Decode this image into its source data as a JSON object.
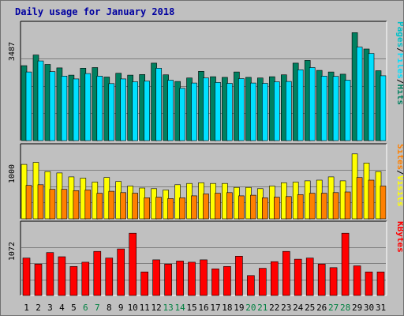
{
  "chart_data": {
    "type": "bar",
    "title": "Daily usage for January 2018",
    "colors": {
      "hits": "#008060",
      "files": "#00e0ff",
      "pages": "#00c0c8",
      "visits": "#ffff00",
      "sites": "#ff8000",
      "kbytes": "#ff0000",
      "weekend_day": "#008040",
      "weekday_day": "#000000"
    },
    "x": [
      "1",
      "2",
      "3",
      "4",
      "5",
      "6",
      "7",
      "8",
      "9",
      "10",
      "11",
      "12",
      "13",
      "14",
      "15",
      "16",
      "17",
      "18",
      "19",
      "20",
      "21",
      "22",
      "23",
      "24",
      "25",
      "26",
      "27",
      "28",
      "29",
      "30",
      "31"
    ],
    "weekend_days": [
      "6",
      "7",
      "13",
      "14",
      "20",
      "21",
      "27",
      "28"
    ],
    "panels": [
      {
        "name": "usage",
        "axis_label": "3487",
        "ylim": [
          0,
          3487
        ],
        "legend": [
          {
            "text": "Hits",
            "color_key": "hits"
          },
          {
            "text": "/",
            "color_key": "divider"
          },
          {
            "text": "Files",
            "color_key": "files"
          },
          {
            "text": "/",
            "color_key": "divider"
          },
          {
            "text": "Pages",
            "color_key": "pages"
          }
        ],
        "series": [
          {
            "name": "Hits",
            "color_key": "hits",
            "values": [
              2380,
              2720,
              2420,
              2310,
              2080,
              2300,
              2320,
              2020,
              2140,
              2080,
              2100,
              2460,
              2090,
              1880,
              1990,
              2200,
              2030,
              2010,
              2180,
              2010,
              1990,
              2030,
              2090,
              2460,
              2550,
              2230,
              2180,
              2110,
              3430,
              2910,
              2220
            ]
          },
          {
            "name": "Files",
            "color_key": "files",
            "values": [
              2180,
              2530,
              2190,
              2050,
              1960,
              2130,
              2050,
              1810,
              1960,
              1870,
              1890,
              2300,
              1920,
              1660,
              1830,
              1990,
              1850,
              1820,
              1970,
              1830,
              1820,
              1870,
              1880,
              2250,
              2320,
              2050,
              2040,
              1920,
              2970,
              2770,
              2060
            ]
          }
        ]
      },
      {
        "name": "visits",
        "axis_label": "1000",
        "ylim": [
          0,
          1000
        ],
        "legend": [
          {
            "text": "Visits",
            "color_key": "visits"
          },
          {
            "text": "/",
            "color_key": "divider"
          },
          {
            "text": "Sites",
            "color_key": "sites"
          }
        ],
        "series": [
          {
            "name": "Visits",
            "color_key": "visits",
            "values": [
              830,
              860,
              720,
              700,
              640,
              620,
              560,
              630,
              570,
              500,
              470,
              460,
              440,
              520,
              540,
              550,
              540,
              540,
              480,
              480,
              460,
              500,
              550,
              560,
              580,
              590,
              640,
              580,
              990,
              850,
              720
            ]
          },
          {
            "name": "Sites",
            "color_key": "sites",
            "values": [
              510,
              520,
              450,
              450,
              430,
              440,
              390,
              420,
              400,
              390,
              320,
              330,
              310,
              320,
              350,
              380,
              390,
              400,
              350,
              360,
              320,
              330,
              340,
              370,
              390,
              390,
              400,
              410,
              630,
              590,
              500
            ]
          }
        ]
      },
      {
        "name": "kbytes",
        "axis_label": "1072",
        "ylim": [
          0,
          1072
        ],
        "legend": [
          {
            "text": "KBytes",
            "color_key": "kbytes"
          }
        ],
        "series": [
          {
            "name": "KBytes",
            "color_key": "kbytes",
            "values": [
              620,
              520,
              710,
              640,
              480,
              550,
              730,
              620,
              770,
              1030,
              390,
              590,
              520,
              570,
              550,
              590,
              440,
              480,
              650,
              330,
              450,
              560,
              730,
              600,
              620,
              520,
              460,
              1030,
              490,
              390,
              390
            ]
          }
        ]
      }
    ],
    "grid": true
  }
}
